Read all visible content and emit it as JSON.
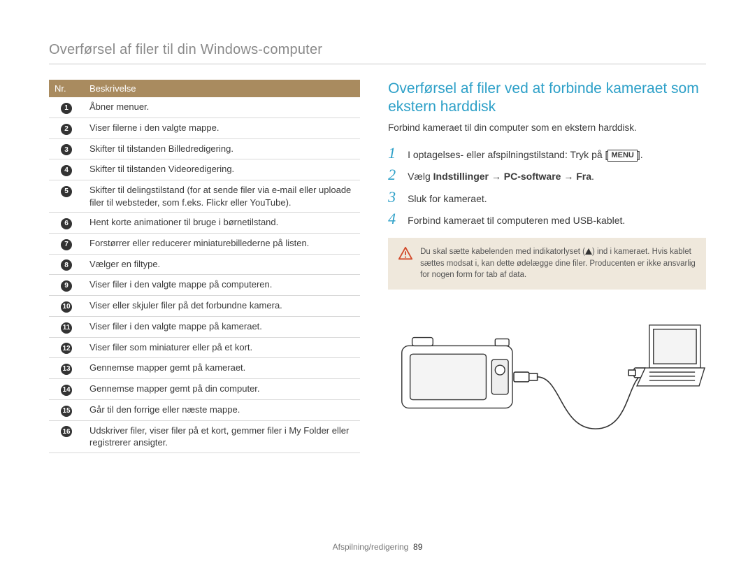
{
  "page_title": "Overførsel af filer til din Windows-computer",
  "table": {
    "header_nr": "Nr.",
    "header_desc": "Beskrivelse",
    "rows": [
      "Åbner menuer.",
      "Viser filerne i den valgte mappe.",
      "Skifter til tilstanden Billedredigering.",
      "Skifter til tilstanden Videoredigering.",
      "Skifter til delingstilstand (for at sende filer via e-mail eller uploade filer til websteder, som f.eks. Flickr eller YouTube).",
      "Hent korte animationer til bruge i børnetilstand.",
      "Forstørrer eller reducerer miniaturebillederne på listen.",
      "Vælger en filtype.",
      "Viser filer i den valgte mappe på computeren.",
      "Viser eller skjuler filer på det forbundne kamera.",
      "Viser filer i den valgte mappe på kameraet.",
      "Viser filer som miniaturer eller på et kort.",
      "Gennemse mapper gemt på kameraet.",
      "Gennemse mapper gemt på din computer.",
      "Går til den forrige eller næste mappe.",
      "Udskriver filer, viser filer på et kort, gemmer filer i My Folder eller registrerer ansigter."
    ]
  },
  "section_title": "Overførsel af filer ved at forbinde kameraet som ekstern harddisk",
  "intro": "Forbind kameraet til din computer som en ekstern harddisk.",
  "steps": {
    "s1_pre": "I optagelses- eller afspilningstilstand: Tryk på [",
    "s1_badge": "MENU",
    "s1_post": "].",
    "s2_pre": "Vælg ",
    "s2_b1": "Indstillinger",
    "s2_arrow": " → ",
    "s2_b2": "PC-software",
    "s2_b3": "Fra",
    "s2_post": ".",
    "s3": "Sluk for kameraet.",
    "s4": "Forbind kameraet til computeren med USB-kablet."
  },
  "warning": {
    "line1a": "Du skal sætte kabelenden med indikatorlyset (",
    "line1b": ") ind i kameraet. Hvis kablet sættes modsat i, kan dette ødelægge dine filer. Producenten er ikke ansvarlig for nogen form for tab af data."
  },
  "footer_section": "Afspilning/redigering",
  "footer_page": "89",
  "colors": {
    "header_bg": "#a98b5f",
    "accent": "#2da0c8",
    "warn_bg": "#efe8dc",
    "warn_stroke": "#d24a2b"
  }
}
